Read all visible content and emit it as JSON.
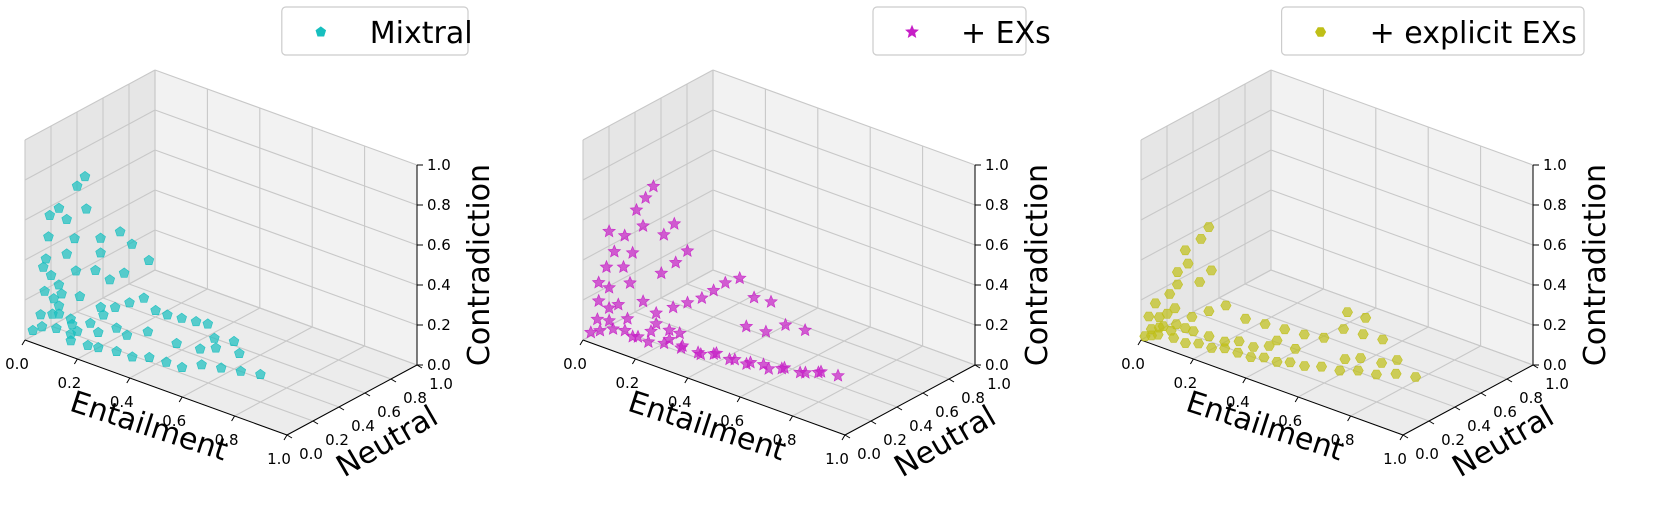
{
  "chart_data": [
    {
      "type": "scatter3d",
      "legend": {
        "label": "Mixtral",
        "placement": "top-right"
      },
      "marker": "pentagon",
      "color": "#17bfbf",
      "xlabel": "Entailment",
      "ylabel": "Neutral",
      "zlabel": "Contradiction",
      "xlim": [
        0.0,
        1.0
      ],
      "ylim": [
        0.0,
        1.0
      ],
      "zlim": [
        0.0,
        1.0
      ],
      "xticks": [
        "0.0",
        "0.2",
        "0.4",
        "0.6",
        "0.8",
        "1.0"
      ],
      "yticks": [
        "0.0",
        "0.2",
        "0.4",
        "0.6",
        "0.8",
        "1.0"
      ],
      "zticks": [
        "0.0",
        "0.2",
        "0.4",
        "0.6",
        "0.8",
        "1.0"
      ],
      "grid": true,
      "points": [
        [
          0.02,
          0.02,
          0.05
        ],
        [
          0.05,
          0.03,
          0.08
        ],
        [
          0.03,
          0.06,
          0.12
        ],
        [
          0.08,
          0.05,
          0.15
        ],
        [
          0.06,
          0.1,
          0.2
        ],
        [
          0.1,
          0.08,
          0.25
        ],
        [
          0.04,
          0.12,
          0.3
        ],
        [
          0.12,
          0.15,
          0.35
        ],
        [
          0.07,
          0.18,
          0.4
        ],
        [
          0.09,
          0.2,
          0.48
        ],
        [
          0.05,
          0.22,
          0.55
        ],
        [
          0.11,
          0.25,
          0.62
        ],
        [
          0.06,
          0.28,
          0.7
        ],
        [
          0.08,
          0.3,
          0.75
        ],
        [
          0.1,
          0.15,
          0.1
        ],
        [
          0.15,
          0.1,
          0.08
        ],
        [
          0.18,
          0.14,
          0.12
        ],
        [
          0.2,
          0.2,
          0.15
        ],
        [
          0.22,
          0.25,
          0.18
        ],
        [
          0.25,
          0.3,
          0.2
        ],
        [
          0.28,
          0.35,
          0.22
        ],
        [
          0.3,
          0.4,
          0.15
        ],
        [
          0.32,
          0.45,
          0.12
        ],
        [
          0.35,
          0.5,
          0.1
        ],
        [
          0.38,
          0.55,
          0.08
        ],
        [
          0.4,
          0.6,
          0.06
        ],
        [
          0.15,
          0.05,
          0.05
        ],
        [
          0.2,
          0.08,
          0.04
        ],
        [
          0.25,
          0.06,
          0.06
        ],
        [
          0.3,
          0.1,
          0.05
        ],
        [
          0.35,
          0.12,
          0.04
        ],
        [
          0.4,
          0.15,
          0.05
        ],
        [
          0.45,
          0.18,
          0.04
        ],
        [
          0.5,
          0.2,
          0.03
        ],
        [
          0.55,
          0.25,
          0.05
        ],
        [
          0.6,
          0.3,
          0.04
        ],
        [
          0.65,
          0.35,
          0.03
        ],
        [
          0.7,
          0.4,
          0.02
        ],
        [
          0.12,
          0.3,
          0.3
        ],
        [
          0.15,
          0.35,
          0.25
        ],
        [
          0.18,
          0.4,
          0.28
        ],
        [
          0.1,
          0.38,
          0.35
        ],
        [
          0.08,
          0.42,
          0.4
        ],
        [
          0.14,
          0.45,
          0.45
        ],
        [
          0.16,
          0.5,
          0.38
        ],
        [
          0.2,
          0.55,
          0.3
        ],
        [
          0.05,
          0.05,
          0.25
        ],
        [
          0.03,
          0.08,
          0.35
        ],
        [
          0.06,
          0.04,
          0.42
        ],
        [
          0.04,
          0.1,
          0.5
        ],
        [
          0.02,
          0.15,
          0.58
        ],
        [
          0.07,
          0.12,
          0.65
        ],
        [
          0.03,
          0.2,
          0.22
        ],
        [
          0.12,
          0.02,
          0.18
        ],
        [
          0.16,
          0.04,
          0.14
        ],
        [
          0.22,
          0.12,
          0.1
        ],
        [
          0.26,
          0.18,
          0.12
        ],
        [
          0.28,
          0.22,
          0.08
        ],
        [
          0.33,
          0.28,
          0.1
        ],
        [
          0.42,
          0.32,
          0.07
        ],
        [
          0.48,
          0.38,
          0.05
        ],
        [
          0.52,
          0.42,
          0.06
        ],
        [
          0.58,
          0.48,
          0.04
        ],
        [
          0.45,
          0.55,
          0.03
        ],
        [
          0.5,
          0.6,
          0.02
        ],
        [
          0.09,
          0.06,
          0.08
        ],
        [
          0.13,
          0.09,
          0.06
        ],
        [
          0.06,
          0.14,
          0.15
        ],
        [
          0.11,
          0.2,
          0.2
        ],
        [
          0.17,
          0.24,
          0.16
        ]
      ]
    },
    {
      "type": "scatter3d",
      "legend": {
        "label": "+ EXs",
        "placement": "top-right"
      },
      "marker": "star",
      "color": "#c61ec6",
      "xlabel": "Entailment",
      "ylabel": "Neutral",
      "zlabel": "Contradiction",
      "xlim": [
        0.0,
        1.0
      ],
      "ylim": [
        0.0,
        1.0
      ],
      "zlim": [
        0.0,
        1.0
      ],
      "xticks": [
        "0.0",
        "0.2",
        "0.4",
        "0.6",
        "0.8",
        "1.0"
      ],
      "yticks": [
        "0.0",
        "0.2",
        "0.4",
        "0.6",
        "0.8",
        "1.0"
      ],
      "zticks": [
        "0.0",
        "0.2",
        "0.4",
        "0.6",
        "0.8",
        "1.0"
      ],
      "grid": true,
      "points": [
        [
          0.02,
          0.02,
          0.04
        ],
        [
          0.05,
          0.03,
          0.06
        ],
        [
          0.03,
          0.05,
          0.1
        ],
        [
          0.08,
          0.04,
          0.12
        ],
        [
          0.06,
          0.08,
          0.16
        ],
        [
          0.1,
          0.07,
          0.2
        ],
        [
          0.05,
          0.1,
          0.25
        ],
        [
          0.12,
          0.12,
          0.3
        ],
        [
          0.08,
          0.15,
          0.35
        ],
        [
          0.1,
          0.18,
          0.42
        ],
        [
          0.06,
          0.2,
          0.48
        ],
        [
          0.12,
          0.22,
          0.55
        ],
        [
          0.08,
          0.25,
          0.6
        ],
        [
          0.1,
          0.28,
          0.66
        ],
        [
          0.12,
          0.3,
          0.72
        ],
        [
          0.15,
          0.08,
          0.06
        ],
        [
          0.2,
          0.1,
          0.05
        ],
        [
          0.25,
          0.12,
          0.06
        ],
        [
          0.3,
          0.15,
          0.05
        ],
        [
          0.35,
          0.18,
          0.04
        ],
        [
          0.4,
          0.2,
          0.05
        ],
        [
          0.45,
          0.22,
          0.04
        ],
        [
          0.5,
          0.25,
          0.03
        ],
        [
          0.55,
          0.28,
          0.04
        ],
        [
          0.6,
          0.32,
          0.03
        ],
        [
          0.65,
          0.36,
          0.02
        ],
        [
          0.7,
          0.4,
          0.03
        ],
        [
          0.75,
          0.45,
          0.02
        ],
        [
          0.18,
          0.2,
          0.15
        ],
        [
          0.22,
          0.25,
          0.18
        ],
        [
          0.25,
          0.3,
          0.2
        ],
        [
          0.28,
          0.35,
          0.22
        ],
        [
          0.3,
          0.4,
          0.25
        ],
        [
          0.32,
          0.45,
          0.28
        ],
        [
          0.35,
          0.5,
          0.3
        ],
        [
          0.15,
          0.3,
          0.3
        ],
        [
          0.18,
          0.35,
          0.35
        ],
        [
          0.2,
          0.4,
          0.4
        ],
        [
          0.12,
          0.38,
          0.45
        ],
        [
          0.14,
          0.42,
          0.5
        ],
        [
          0.04,
          0.04,
          0.2
        ],
        [
          0.03,
          0.06,
          0.28
        ],
        [
          0.05,
          0.08,
          0.36
        ],
        [
          0.07,
          0.1,
          0.44
        ],
        [
          0.04,
          0.12,
          0.52
        ],
        [
          0.14,
          0.04,
          0.1
        ],
        [
          0.18,
          0.06,
          0.08
        ],
        [
          0.22,
          0.08,
          0.12
        ],
        [
          0.28,
          0.1,
          0.1
        ],
        [
          0.32,
          0.12,
          0.08
        ],
        [
          0.38,
          0.14,
          0.06
        ],
        [
          0.42,
          0.18,
          0.07
        ],
        [
          0.48,
          0.2,
          0.06
        ],
        [
          0.52,
          0.24,
          0.05
        ],
        [
          0.58,
          0.26,
          0.04
        ],
        [
          0.62,
          0.3,
          0.05
        ],
        [
          0.68,
          0.34,
          0.04
        ],
        [
          0.72,
          0.38,
          0.05
        ],
        [
          0.4,
          0.45,
          0.1
        ],
        [
          0.45,
          0.5,
          0.08
        ],
        [
          0.5,
          0.55,
          0.12
        ],
        [
          0.55,
          0.6,
          0.1
        ],
        [
          0.38,
          0.55,
          0.2
        ],
        [
          0.42,
          0.6,
          0.18
        ],
        [
          0.09,
          0.05,
          0.08
        ],
        [
          0.13,
          0.08,
          0.14
        ],
        [
          0.16,
          0.14,
          0.22
        ],
        [
          0.2,
          0.16,
          0.12
        ],
        [
          0.24,
          0.18,
          0.1
        ],
        [
          0.26,
          0.22,
          0.08
        ]
      ]
    },
    {
      "type": "scatter3d",
      "legend": {
        "label": "+ explicit EXs",
        "placement": "top-right"
      },
      "marker": "hexagon",
      "color": "#bfbf17",
      "xlabel": "Entailment",
      "ylabel": "Neutral",
      "zlabel": "Contradiction",
      "xlim": [
        0.0,
        1.0
      ],
      "ylim": [
        0.0,
        1.0
      ],
      "zlim": [
        0.0,
        1.0
      ],
      "xticks": [
        "0.0",
        "0.2",
        "0.4",
        "0.6",
        "0.8",
        "1.0"
      ],
      "yticks": [
        "0.0",
        "0.2",
        "0.4",
        "0.6",
        "0.8",
        "1.0"
      ],
      "zticks": [
        "0.0",
        "0.2",
        "0.4",
        "0.6",
        "0.8",
        "1.0"
      ],
      "grid": true,
      "points": [
        [
          0.01,
          0.01,
          0.02
        ],
        [
          0.03,
          0.02,
          0.03
        ],
        [
          0.02,
          0.04,
          0.05
        ],
        [
          0.05,
          0.03,
          0.04
        ],
        [
          0.04,
          0.06,
          0.06
        ],
        [
          0.06,
          0.05,
          0.08
        ],
        [
          0.03,
          0.08,
          0.1
        ],
        [
          0.08,
          0.07,
          0.06
        ],
        [
          0.05,
          0.1,
          0.12
        ],
        [
          0.07,
          0.12,
          0.15
        ],
        [
          0.04,
          0.14,
          0.2
        ],
        [
          0.06,
          0.16,
          0.25
        ],
        [
          0.05,
          0.18,
          0.3
        ],
        [
          0.08,
          0.2,
          0.35
        ],
        [
          0.06,
          0.22,
          0.4
        ],
        [
          0.1,
          0.05,
          0.04
        ],
        [
          0.14,
          0.06,
          0.03
        ],
        [
          0.18,
          0.08,
          0.04
        ],
        [
          0.22,
          0.1,
          0.03
        ],
        [
          0.26,
          0.12,
          0.04
        ],
        [
          0.3,
          0.14,
          0.03
        ],
        [
          0.34,
          0.16,
          0.02
        ],
        [
          0.38,
          0.18,
          0.03
        ],
        [
          0.42,
          0.2,
          0.02
        ],
        [
          0.46,
          0.22,
          0.03
        ],
        [
          0.5,
          0.25,
          0.02
        ],
        [
          0.55,
          0.28,
          0.03
        ],
        [
          0.6,
          0.32,
          0.02
        ],
        [
          0.65,
          0.36,
          0.03
        ],
        [
          0.7,
          0.4,
          0.02
        ],
        [
          0.75,
          0.45,
          0.03
        ],
        [
          0.8,
          0.5,
          0.02
        ],
        [
          0.12,
          0.15,
          0.12
        ],
        [
          0.16,
          0.2,
          0.15
        ],
        [
          0.2,
          0.25,
          0.18
        ],
        [
          0.25,
          0.3,
          0.12
        ],
        [
          0.3,
          0.35,
          0.1
        ],
        [
          0.35,
          0.4,
          0.08
        ],
        [
          0.4,
          0.45,
          0.06
        ],
        [
          0.45,
          0.5,
          0.05
        ],
        [
          0.5,
          0.55,
          0.1
        ],
        [
          0.55,
          0.6,
          0.08
        ],
        [
          0.6,
          0.65,
          0.06
        ],
        [
          0.48,
          0.62,
          0.15
        ],
        [
          0.52,
          0.68,
          0.12
        ],
        [
          0.1,
          0.25,
          0.25
        ],
        [
          0.12,
          0.3,
          0.3
        ],
        [
          0.09,
          0.28,
          0.45
        ],
        [
          0.1,
          0.32,
          0.5
        ],
        [
          0.02,
          0.02,
          0.12
        ],
        [
          0.03,
          0.05,
          0.18
        ],
        [
          0.09,
          0.09,
          0.09
        ],
        [
          0.11,
          0.12,
          0.07
        ],
        [
          0.15,
          0.1,
          0.08
        ],
        [
          0.19,
          0.14,
          0.06
        ],
        [
          0.24,
          0.16,
          0.05
        ],
        [
          0.28,
          0.19,
          0.06
        ],
        [
          0.32,
          0.22,
          0.04
        ],
        [
          0.36,
          0.26,
          0.05
        ],
        [
          0.58,
          0.4,
          0.04
        ],
        [
          0.62,
          0.44,
          0.05
        ],
        [
          0.68,
          0.48,
          0.04
        ],
        [
          0.72,
          0.52,
          0.06
        ],
        [
          0.44,
          0.3,
          0.06
        ],
        [
          0.38,
          0.28,
          0.08
        ]
      ]
    }
  ]
}
